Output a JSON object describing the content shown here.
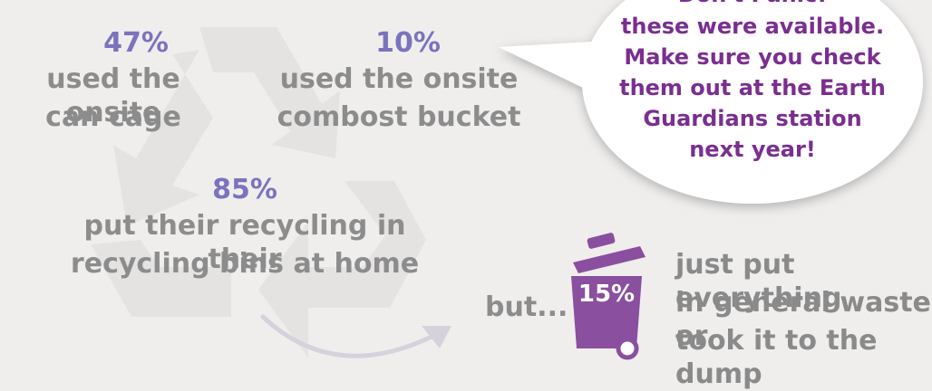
{
  "stats": {
    "can_cage": {
      "percent": "47%",
      "line1": "used the onsite",
      "line2": "can cage"
    },
    "compost": {
      "percent": "10%",
      "line1": "used the onsite",
      "line2": "combost bucket"
    },
    "home_recycling": {
      "percent": "85%",
      "line1": "put their recycling in their",
      "line2": "recycling bins at home"
    }
  },
  "bubble": {
    "line0": "Don't Panic!",
    "line1": "these were available.",
    "line2": "Make sure you check",
    "line3": "them out at the Earth",
    "line4": "Guardians station",
    "line5": "next year!"
  },
  "waste": {
    "but_label": "but...",
    "bin_percent": "15%",
    "line1": "just put everything",
    "line2": "in general waste or",
    "line3": "took it to the dump"
  },
  "colors": {
    "background": "#efeeed",
    "percent_blue": "#7b73bd",
    "body_grey": "#8c8c8c",
    "bubble_purple": "#7a2f8f",
    "bin_purple": "#8a4f9e",
    "recycle_symbol": "#e4e3e2"
  },
  "icons": {
    "background_symbol": "recycling-symbol-icon",
    "bin": "wheelie-bin-icon",
    "arrow": "curved-arrow-icon"
  }
}
